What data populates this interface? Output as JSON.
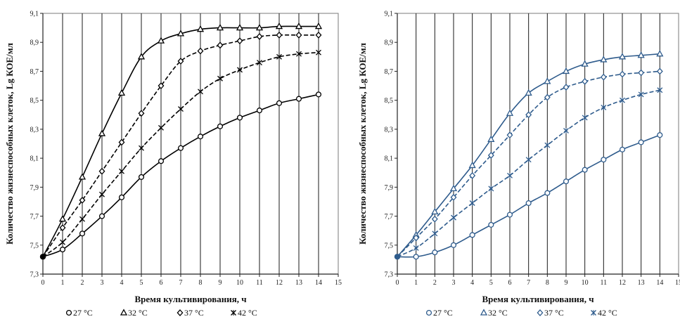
{
  "chart_data": [
    {
      "type": "line",
      "panel": "left",
      "color": "#000000",
      "xlabel": "Время культивирования, ч",
      "ylabel": "Количество жизнеспособных клеток, Lg КОЕ/мл",
      "xlim": [
        0,
        15
      ],
      "ylim": [
        7.3,
        9.1
      ],
      "x_ticks": [
        0,
        1,
        2,
        3,
        4,
        5,
        6,
        7,
        8,
        9,
        10,
        11,
        12,
        13,
        14,
        15
      ],
      "y_ticks": [
        "7,3",
        "7,5",
        "7,7",
        "7,9",
        "8,1",
        "8,3",
        "8,5",
        "8,7",
        "8,9",
        "9,1"
      ],
      "grid": "vertical",
      "x": [
        0,
        1,
        2,
        3,
        4,
        5,
        6,
        7,
        8,
        9,
        10,
        11,
        12,
        13,
        14
      ],
      "series": [
        {
          "name": "27 °C",
          "marker": "circle",
          "dash": "solid",
          "values": [
            7.42,
            7.47,
            7.58,
            7.7,
            7.83,
            7.97,
            8.08,
            8.17,
            8.25,
            8.32,
            8.38,
            8.43,
            8.48,
            8.51,
            8.54
          ]
        },
        {
          "name": "32 °C",
          "marker": "triangle",
          "dash": "solid",
          "values": [
            7.42,
            7.68,
            7.97,
            8.27,
            8.55,
            8.8,
            8.91,
            8.96,
            8.99,
            9.0,
            9.0,
            9.0,
            9.01,
            9.01,
            9.01
          ]
        },
        {
          "name": "37 °C",
          "marker": "diamond",
          "dash": "dashed",
          "values": [
            7.42,
            7.62,
            7.81,
            8.01,
            8.21,
            8.41,
            8.6,
            8.77,
            8.84,
            8.88,
            8.91,
            8.94,
            8.95,
            8.95,
            8.95
          ]
        },
        {
          "name": "42 °C",
          "marker": "asterisk",
          "dash": "dashed",
          "values": [
            7.42,
            7.52,
            7.68,
            7.85,
            8.01,
            8.17,
            8.31,
            8.44,
            8.56,
            8.65,
            8.71,
            8.76,
            8.8,
            8.82,
            8.83
          ]
        }
      ]
    },
    {
      "type": "line",
      "panel": "right",
      "color": "#2e5b8c",
      "xlabel": "Время культивирования, ч",
      "ylabel": "Количество жизнеспособных клеток, Lg КОЕ/мл",
      "xlim": [
        0,
        15
      ],
      "ylim": [
        7.3,
        9.1
      ],
      "x_ticks": [
        0,
        1,
        2,
        3,
        4,
        5,
        6,
        7,
        8,
        9,
        10,
        11,
        12,
        13,
        14,
        15
      ],
      "y_ticks": [
        "7,3",
        "7,5",
        "7,7",
        "7,9",
        "8,1",
        "8,3",
        "8,5",
        "8,7",
        "8,9",
        "9,1"
      ],
      "grid": "vertical",
      "x": [
        0,
        1,
        2,
        3,
        4,
        5,
        6,
        7,
        8,
        9,
        10,
        11,
        12,
        13,
        14
      ],
      "series": [
        {
          "name": "27 °C",
          "marker": "circle",
          "dash": "solid",
          "values": [
            7.42,
            7.42,
            7.45,
            7.5,
            7.57,
            7.64,
            7.71,
            7.79,
            7.86,
            7.94,
            8.02,
            8.09,
            8.16,
            8.21,
            8.26
          ]
        },
        {
          "name": "32 °C",
          "marker": "triangle",
          "dash": "solid",
          "values": [
            7.42,
            7.57,
            7.73,
            7.89,
            8.05,
            8.23,
            8.41,
            8.55,
            8.63,
            8.7,
            8.75,
            8.78,
            8.8,
            8.81,
            8.82
          ]
        },
        {
          "name": "37 °C",
          "marker": "diamond",
          "dash": "dashed",
          "values": [
            7.42,
            7.55,
            7.68,
            7.83,
            7.98,
            8.12,
            8.26,
            8.4,
            8.52,
            8.59,
            8.63,
            8.66,
            8.68,
            8.69,
            8.7
          ]
        },
        {
          "name": "42 °C",
          "marker": "asterisk",
          "dash": "dashed",
          "values": [
            7.42,
            7.48,
            7.58,
            7.69,
            7.79,
            7.89,
            7.98,
            8.09,
            8.19,
            8.29,
            8.38,
            8.45,
            8.5,
            8.54,
            8.57
          ]
        }
      ]
    }
  ]
}
